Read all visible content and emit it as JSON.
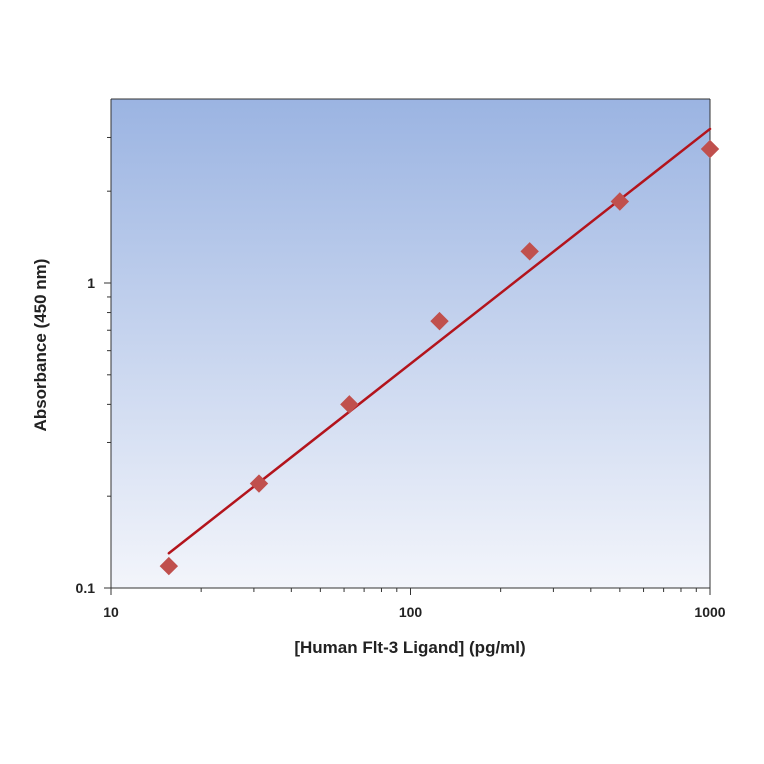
{
  "chart_data": {
    "type": "scatter",
    "xlabel": "[Human Flt-3 Ligand] (pg/ml)",
    "ylabel": "Absorbance (450 nm)",
    "xscale": "log",
    "yscale": "log",
    "xlim": [
      10,
      1000
    ],
    "ylim": [
      0.1,
      3.5
    ],
    "x_tick_labels": [
      "10",
      "100",
      "1000"
    ],
    "y_tick_labels": [
      "0.1",
      "1"
    ],
    "grid": false,
    "legend": "none",
    "series": [
      {
        "marker": "diamond",
        "x": [
          15.6,
          31.2,
          62.5,
          125,
          250,
          500,
          1000
        ],
        "y": [
          0.118,
          0.22,
          0.4,
          0.75,
          1.27,
          1.85,
          2.75
        ]
      }
    ],
    "fit_line": {
      "x": [
        15.6,
        1000
      ],
      "y": [
        0.13,
        3.2
      ]
    },
    "colors": {
      "marker": "#c0504d",
      "fit_line": "#b3141c",
      "plot_bg_top": "#9bb4e2",
      "plot_bg_bottom": "#f3f5fb"
    }
  }
}
